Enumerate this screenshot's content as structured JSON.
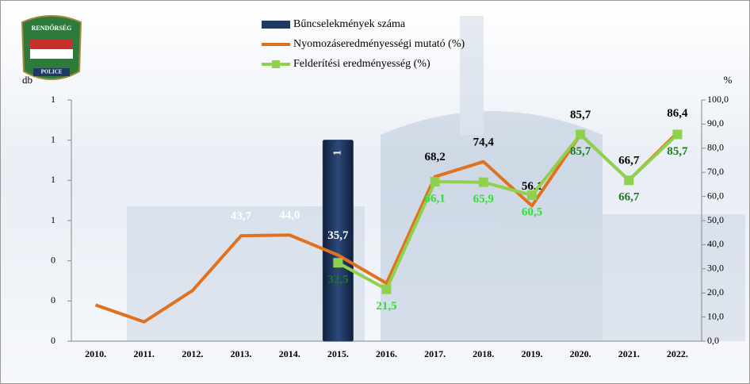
{
  "logo": {
    "top": "RENDŐRSÉG",
    "bottom": "POLICE"
  },
  "chart_data": {
    "type": "bar",
    "y_label": "db",
    "y2_label": "%",
    "categories": [
      "2010.",
      "2011.",
      "2012.",
      "2013.",
      "2014.",
      "2015.",
      "2016.",
      "2017.",
      "2018.",
      "2019.",
      "2020.",
      "2021.",
      "2022."
    ],
    "ylim": [
      0,
      1.2
    ],
    "yticks": [
      {
        "value": 0,
        "label": "0"
      },
      {
        "value": 0.2,
        "label": "0"
      },
      {
        "value": 0.4,
        "label": "0"
      },
      {
        "value": 0.6,
        "label": "1"
      },
      {
        "value": 0.8,
        "label": "1"
      },
      {
        "value": 1.0,
        "label": "1"
      },
      {
        "value": 1.2,
        "label": "1"
      }
    ],
    "y2lim": [
      0,
      100
    ],
    "y2ticks": [
      {
        "value": 0,
        "label": "0,0"
      },
      {
        "value": 10,
        "label": "10,0"
      },
      {
        "value": 20,
        "label": "20,0"
      },
      {
        "value": 30,
        "label": "30,0"
      },
      {
        "value": 40,
        "label": "40,0"
      },
      {
        "value": 50,
        "label": "50,0"
      },
      {
        "value": 60,
        "label": "60,0"
      },
      {
        "value": 70,
        "label": "70,0"
      },
      {
        "value": 80,
        "label": "80,0"
      },
      {
        "value": 90,
        "label": "90,0"
      },
      {
        "value": 100,
        "label": "100,0"
      }
    ],
    "legend": "top",
    "series": [
      {
        "name": "Bűncselekmények száma",
        "type": "bar",
        "color": "#1f3864",
        "values": [
          null,
          null,
          null,
          null,
          null,
          1,
          null,
          null,
          null,
          null,
          null,
          null,
          null
        ]
      },
      {
        "name": "Nyomozáseredményességi mutató (%)",
        "type": "line",
        "axis": "y2",
        "color": "#e2711d",
        "values": [
          15,
          8,
          21,
          43.7,
          44.0,
          35.7,
          24,
          68.2,
          74.4,
          56.1,
          85.7,
          66.7,
          86.4
        ],
        "value_labels": [
          null,
          null,
          null,
          "43,7",
          "44,0",
          "35,7",
          null,
          "68,2",
          "74,4",
          "56,1",
          "85,7",
          "66,7",
          "86,4"
        ]
      },
      {
        "name": "Felderítési eredményesség (%)",
        "type": "line",
        "axis": "y2",
        "color": "#8fd14f",
        "marker": "square",
        "values": [
          null,
          null,
          null,
          null,
          null,
          32.5,
          21.5,
          66.1,
          65.9,
          60.5,
          85.7,
          66.7,
          85.7
        ],
        "value_labels": [
          null,
          null,
          null,
          null,
          null,
          "32,5",
          "21,5",
          "66,1",
          "65,9",
          "60,5",
          "85,7",
          "66,7",
          "85,7"
        ]
      }
    ]
  }
}
